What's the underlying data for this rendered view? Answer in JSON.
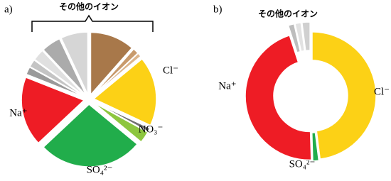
{
  "chart_data": [
    {
      "type": "pie",
      "title": "a)",
      "group_label": "その他のイオン",
      "categories": [
        null,
        null,
        null,
        "Cl⁻",
        null,
        "NO₃⁻",
        "SO₄²⁻",
        "Na⁺",
        null,
        null,
        null,
        null,
        null
      ],
      "values": [
        11.5,
        1.5,
        1,
        18,
        1,
        3,
        27,
        18,
        2,
        2,
        3,
        5,
        7
      ],
      "colors": [
        "#a8784a",
        "#c89a6c",
        "#dcb58c",
        "#fcd116",
        "#707070",
        "#8dc63f",
        "#21ad4b",
        "#ee1c25",
        "#9a9a9a",
        "#c4c4c4",
        "#e0e0e0",
        "#ababab",
        "#d6d6d6"
      ]
    },
    {
      "type": "donut",
      "title": "b)",
      "group_label": "その他のイオン",
      "categories": [
        "Cl⁻",
        "SO₄²⁻",
        "Na⁺",
        null,
        null,
        null
      ],
      "values": [
        48,
        1.5,
        45.5,
        1.5,
        1.5,
        2
      ],
      "colors": [
        "#fcd116",
        "#21ad4b",
        "#ee1c25",
        "#bdbdbd",
        "#e2e2e2",
        "#d0d0d0"
      ]
    }
  ]
}
